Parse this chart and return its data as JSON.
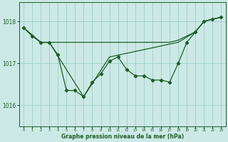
{
  "title": "Graphe pression niveau de la mer (hPa)",
  "bg_color": "#cce9e5",
  "grid_color": "#9dcdc7",
  "line_color": "#1e5c28",
  "ylim": [
    1015.5,
    1018.45
  ],
  "xlim": [
    -0.5,
    23.5
  ],
  "yticks": [
    1016,
    1017,
    1018
  ],
  "xticks": [
    0,
    1,
    2,
    3,
    4,
    5,
    6,
    7,
    8,
    9,
    10,
    11,
    12,
    13,
    14,
    15,
    16,
    17,
    18,
    19,
    20,
    21,
    22,
    23
  ],
  "series1_x": [
    0,
    1,
    2,
    3,
    4,
    5,
    6,
    7,
    8,
    9,
    10,
    11,
    12,
    13,
    14,
    15,
    16,
    17,
    18,
    19,
    20,
    21,
    22,
    23
  ],
  "series1_y": [
    1017.85,
    1017.65,
    1017.5,
    1017.5,
    1017.2,
    1016.35,
    1016.35,
    1016.2,
    1016.55,
    1016.75,
    1017.05,
    1017.15,
    1016.85,
    1016.7,
    1016.7,
    1016.6,
    1016.6,
    1016.55,
    1017.0,
    1017.5,
    1017.75,
    1018.0,
    1018.05,
    1018.1
  ],
  "series2_x": [
    0,
    2,
    3,
    7,
    10,
    18,
    20,
    21,
    22,
    23
  ],
  "series2_y": [
    1017.85,
    1017.5,
    1017.5,
    1016.2,
    1017.15,
    1017.5,
    1017.75,
    1018.0,
    1018.05,
    1018.1
  ],
  "series3_x": [
    0,
    2,
    3,
    7,
    10,
    17,
    18,
    20,
    21,
    22,
    23
  ],
  "series3_y": [
    1017.85,
    1017.5,
    1017.5,
    1017.5,
    1017.5,
    1017.5,
    1017.55,
    1017.75,
    1018.0,
    1018.05,
    1018.1
  ]
}
